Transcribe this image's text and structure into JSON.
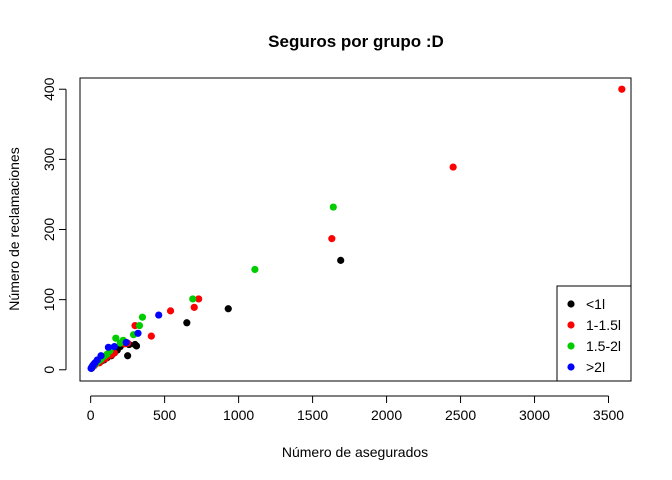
{
  "chart_data": {
    "type": "scatter",
    "title": "Seguros por grupo :D",
    "xlabel": "Número de asegurados",
    "ylabel": "Número de reclamaciones",
    "xlim": [
      -72,
      3652
    ],
    "ylim": [
      -16,
      416
    ],
    "xticks": [
      0,
      500,
      1000,
      1500,
      2000,
      2500,
      3000,
      3500
    ],
    "yticks": [
      0,
      100,
      200,
      300,
      400
    ],
    "legend_position": "bottom-right",
    "series": [
      {
        "name": "<1l",
        "color": "#000000",
        "points": [
          [
            5,
            2
          ],
          [
            12,
            5
          ],
          [
            20,
            6
          ],
          [
            30,
            9
          ],
          [
            45,
            10
          ],
          [
            70,
            12
          ],
          [
            90,
            14
          ],
          [
            110,
            17
          ],
          [
            140,
            20
          ],
          [
            160,
            24
          ],
          [
            180,
            28
          ],
          [
            200,
            33
          ],
          [
            250,
            20
          ],
          [
            260,
            36
          ],
          [
            300,
            36
          ],
          [
            310,
            34
          ],
          [
            650,
            67
          ],
          [
            930,
            87
          ],
          [
            1690,
            156
          ]
        ]
      },
      {
        "name": "1-1.5l",
        "color": "#ff0000",
        "points": [
          [
            10,
            3
          ],
          [
            25,
            6
          ],
          [
            40,
            9
          ],
          [
            60,
            10
          ],
          [
            80,
            14
          ],
          [
            100,
            16
          ],
          [
            120,
            20
          ],
          [
            140,
            21
          ],
          [
            160,
            24
          ],
          [
            230,
            37
          ],
          [
            250,
            38
          ],
          [
            300,
            63
          ],
          [
            410,
            48
          ],
          [
            540,
            84
          ],
          [
            700,
            89
          ],
          [
            730,
            101
          ],
          [
            1630,
            187
          ],
          [
            2450,
            289
          ],
          [
            3590,
            400
          ]
        ]
      },
      {
        "name": "1.5-2l",
        "color": "#00cc00",
        "points": [
          [
            8,
            3
          ],
          [
            20,
            6
          ],
          [
            35,
            9
          ],
          [
            50,
            12
          ],
          [
            70,
            15
          ],
          [
            90,
            19
          ],
          [
            110,
            22
          ],
          [
            130,
            27
          ],
          [
            170,
            45
          ],
          [
            200,
            38
          ],
          [
            220,
            42
          ],
          [
            290,
            50
          ],
          [
            330,
            63
          ],
          [
            350,
            75
          ],
          [
            690,
            101
          ],
          [
            1110,
            143
          ],
          [
            1640,
            232
          ]
        ]
      },
      {
        "name": ">2l",
        "color": "#0000ff",
        "points": [
          [
            3,
            2
          ],
          [
            6,
            3
          ],
          [
            10,
            4
          ],
          [
            15,
            6
          ],
          [
            22,
            8
          ],
          [
            30,
            10
          ],
          [
            45,
            14
          ],
          [
            70,
            20
          ],
          [
            120,
            32
          ],
          [
            160,
            33
          ],
          [
            240,
            39
          ],
          [
            320,
            52
          ],
          [
            460,
            78
          ]
        ]
      }
    ]
  }
}
